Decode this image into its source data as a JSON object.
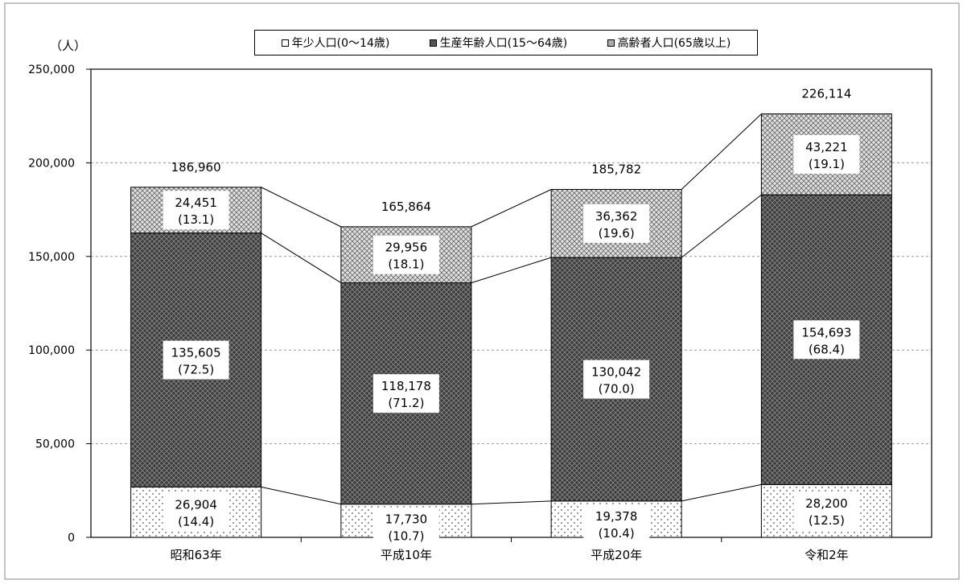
{
  "chart_data": {
    "type": "bar",
    "stacked": true,
    "unit_label": "（人）",
    "categories": [
      "昭和63年",
      "平成10年",
      "平成20年",
      "令和2年"
    ],
    "ylim": [
      0,
      250000
    ],
    "yticks": [
      0,
      50000,
      100000,
      150000,
      200000,
      250000
    ],
    "ytick_labels": [
      "0",
      "50,000",
      "100,000",
      "150,000",
      "200,000",
      "250,000"
    ],
    "grid": true,
    "legend_position": "top",
    "series": [
      {
        "name": "年少人口(0～14歳)",
        "values": [
          26904,
          17730,
          19378,
          28200
        ],
        "labels": [
          "26,904",
          "17,730",
          "19,378",
          "28,200"
        ],
        "percent_labels": [
          "(14.4)",
          "(10.7)",
          "(10.4)",
          "(12.5)"
        ],
        "color": "#ffffff"
      },
      {
        "name": "生産年齢人口(15～64歳)",
        "values": [
          135605,
          118178,
          130042,
          154693
        ],
        "labels": [
          "135,605",
          "118,178",
          "130,042",
          "154,693"
        ],
        "percent_labels": [
          "(72.5)",
          "(71.2)",
          "(70.0)",
          "(68.4)"
        ],
        "color": "#4a4a4a"
      },
      {
        "name": "高齢者人口(65歳以上)",
        "values": [
          24451,
          29956,
          36362,
          43221
        ],
        "labels": [
          "24,451",
          "29,956",
          "36,362",
          "43,221"
        ],
        "percent_labels": [
          "(13.1)",
          "(18.1)",
          "(19.6)",
          "(19.1)"
        ],
        "color": "#b0b0b0"
      }
    ],
    "totals": [
      186960,
      165864,
      185782,
      226114
    ],
    "total_labels": [
      "186,960",
      "165,864",
      "185,782",
      "226,114"
    ]
  }
}
